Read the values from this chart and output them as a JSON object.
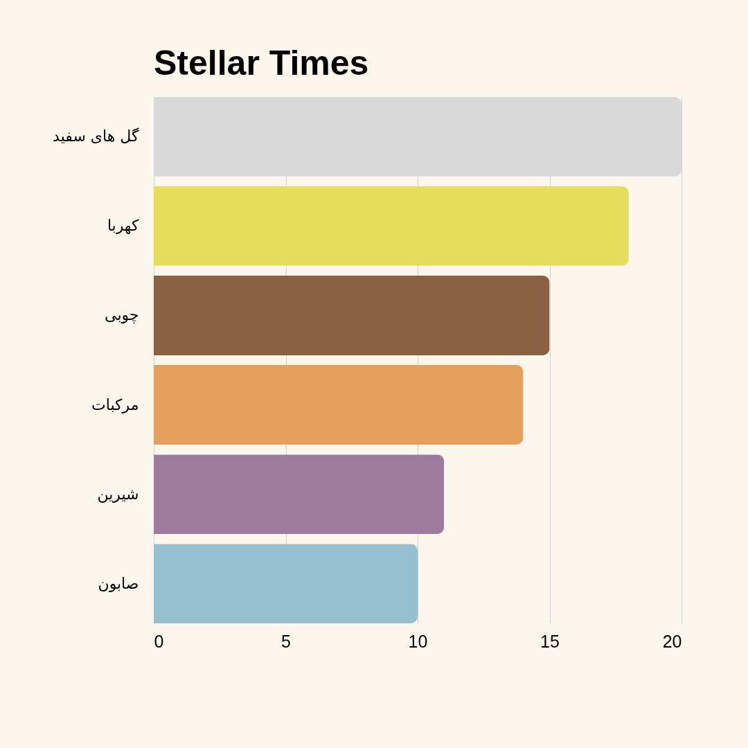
{
  "chart_data": {
    "type": "bar",
    "orientation": "horizontal",
    "title": "Stellar Times",
    "categories": [
      "گل های سفید",
      "کهربا",
      "چوبی",
      "مرکبات",
      "شیرین",
      "صابون"
    ],
    "values": [
      20,
      18,
      15,
      14,
      11,
      10
    ],
    "colors": [
      "#d9d9d9",
      "#e4de5c",
      "#8a6042",
      "#e6a05e",
      "#9b7c9f",
      "#96bfcf"
    ],
    "xlim": [
      0,
      20
    ],
    "xticks": [
      0,
      5,
      10,
      15,
      20
    ],
    "grid": "x"
  }
}
